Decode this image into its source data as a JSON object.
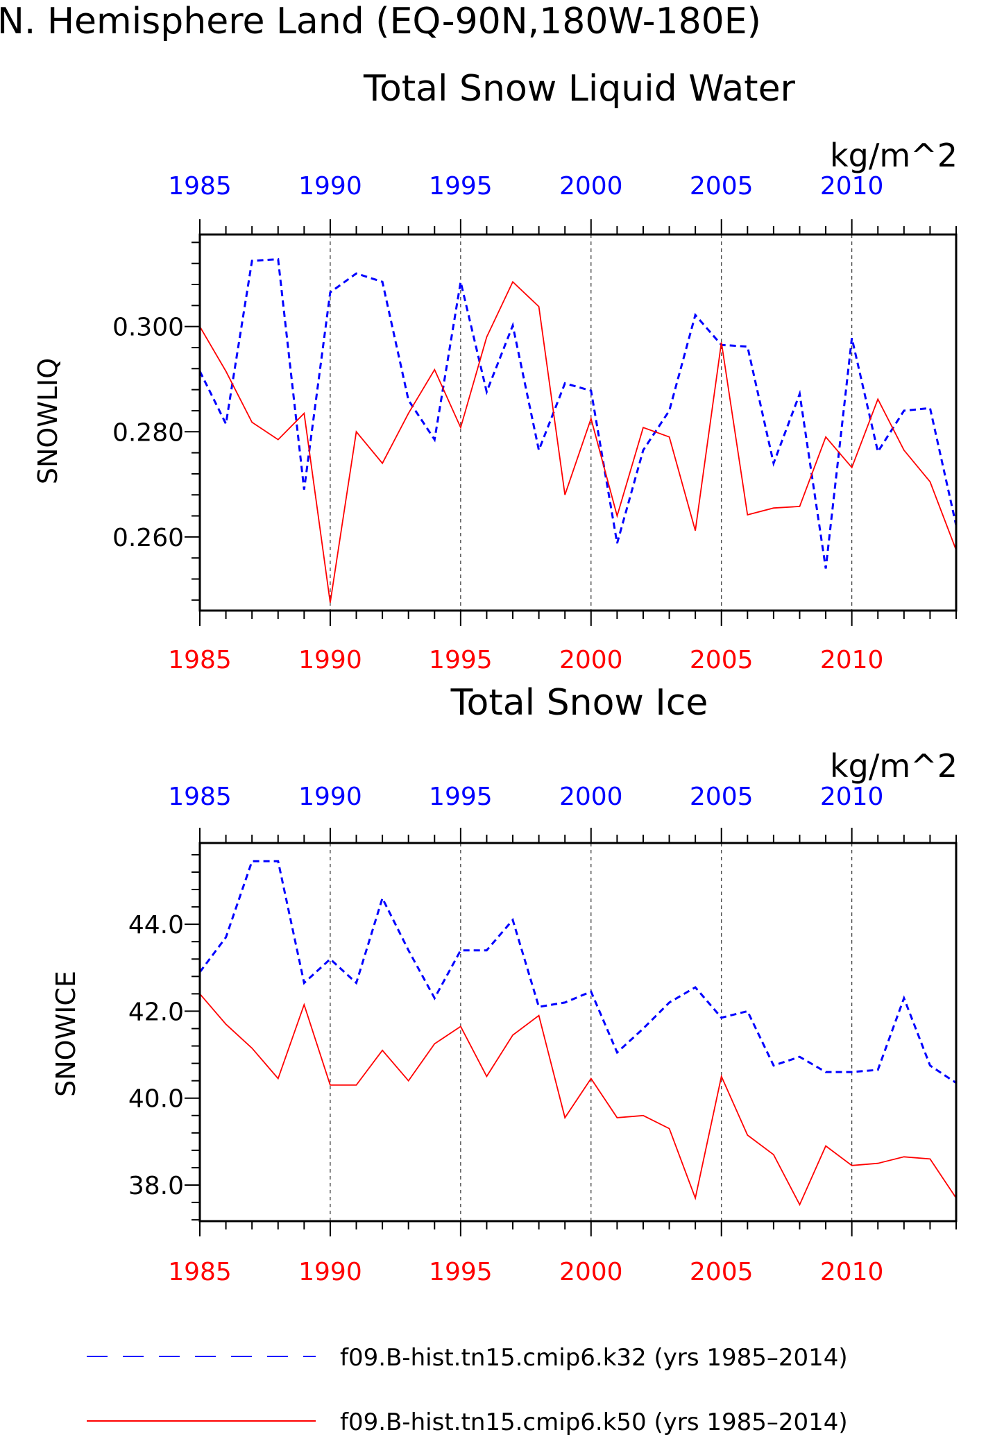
{
  "figure": {
    "title_line1": "N. Hemisphere Land (EQ-90N,180W-180E)"
  },
  "colors": {
    "blue": "#0000ff",
    "red": "#ff0000",
    "black": "#000000",
    "grid": "#333333"
  },
  "chart_data": [
    {
      "type": "line",
      "title": "Total Snow Liquid Water",
      "units": "kg/m^2",
      "ylabel": "SNOWLIQ",
      "xlim": [
        1985,
        2014
      ],
      "ylim": [
        0.246,
        0.3175
      ],
      "yticks": [
        "0.300",
        "0.280",
        "0.260"
      ],
      "ytick_values": [
        0.3,
        0.28,
        0.26
      ],
      "xticks": [
        "1985",
        "1990",
        "1995",
        "2000",
        "2005",
        "2010"
      ],
      "grid": "vertical dashed at 1990, 1995, 2000, 2005, 2010",
      "x": [
        1985,
        1986,
        1987,
        1988,
        1989,
        1990,
        1991,
        1992,
        1993,
        1994,
        1995,
        1996,
        1997,
        1998,
        1999,
        2000,
        2001,
        2002,
        2003,
        2004,
        2005,
        2006,
        2007,
        2008,
        2009,
        2010,
        2011,
        2012,
        2013,
        2014
      ],
      "series": [
        {
          "name": "f09.B-hist.tn15.cmip6.k32 (yrs 1985-2014)",
          "style": "dashed",
          "color": "#0000ff",
          "values": [
            0.2915,
            0.2815,
            0.3125,
            0.3128,
            0.269,
            0.3065,
            0.3101,
            0.3085,
            0.286,
            0.2785,
            0.3085,
            0.2876,
            0.3002,
            0.2765,
            0.2892,
            0.2878,
            0.2588,
            0.2765,
            0.284,
            0.3022,
            0.2965,
            0.2962,
            0.274,
            0.2872,
            0.254,
            0.2978,
            0.2762,
            0.284,
            0.2845,
            0.2622
          ]
        },
        {
          "name": "f09.B-hist.tn15.cmip6.k50 (yrs 1985-2014)",
          "style": "solid",
          "color": "#ff0000",
          "values": [
            0.3,
            0.2915,
            0.2818,
            0.2785,
            0.2835,
            0.2475,
            0.28,
            0.274,
            0.2835,
            0.2918,
            0.2808,
            0.298,
            0.3085,
            0.3038,
            0.268,
            0.2825,
            0.264,
            0.2808,
            0.279,
            0.2612,
            0.297,
            0.2642,
            0.2655,
            0.2658,
            0.279,
            0.2732,
            0.2862,
            0.2765,
            0.2705,
            0.2575
          ]
        }
      ]
    },
    {
      "type": "line",
      "title": "Total Snow Ice",
      "units": "kg/m^2",
      "ylabel": "SNOWICE",
      "xlim": [
        1985,
        2014
      ],
      "ylim": [
        37.17,
        45.87
      ],
      "yticks": [
        "44.0",
        "42.0",
        "40.0",
        "38.0"
      ],
      "ytick_values": [
        44,
        42,
        40,
        38
      ],
      "xticks": [
        "1985",
        "1990",
        "1995",
        "2000",
        "2005",
        "2010"
      ],
      "grid": "vertical dashed at 1990, 1995, 2000, 2005, 2010",
      "x": [
        1985,
        1986,
        1987,
        1988,
        1989,
        1990,
        1991,
        1992,
        1993,
        1994,
        1995,
        1996,
        1997,
        1998,
        1999,
        2000,
        2001,
        2002,
        2003,
        2004,
        2005,
        2006,
        2007,
        2008,
        2009,
        2010,
        2011,
        2012,
        2013,
        2014
      ],
      "series": [
        {
          "name": "f09.B-hist.tn15.cmip6.k32 (yrs 1985-2014)",
          "style": "dashed",
          "color": "#0000ff",
          "values": [
            42.9,
            43.7,
            45.45,
            45.45,
            42.65,
            43.2,
            42.65,
            44.6,
            43.4,
            42.3,
            43.4,
            43.4,
            44.1,
            42.1,
            42.2,
            42.45,
            41.05,
            41.6,
            42.2,
            42.55,
            41.85,
            42.0,
            40.75,
            40.95,
            40.6,
            40.6,
            40.65,
            42.3,
            40.75,
            40.35
          ]
        },
        {
          "name": "f09.B-hist.tn15.cmip6.k50 (yrs 1985-2014)",
          "style": "solid",
          "color": "#ff0000",
          "values": [
            42.4,
            41.7,
            41.15,
            40.45,
            42.15,
            40.3,
            40.3,
            41.1,
            40.4,
            41.25,
            41.65,
            40.5,
            41.45,
            41.9,
            39.55,
            40.45,
            39.55,
            39.6,
            39.3,
            37.7,
            40.5,
            39.15,
            38.7,
            37.55,
            38.9,
            38.45,
            38.5,
            38.65,
            38.6,
            37.7
          ]
        }
      ]
    }
  ],
  "legend": {
    "items": [
      {
        "label": "f09.B-hist.tn15.cmip6.k32 (yrs 1985–2014)",
        "style": "dashed",
        "color": "#0000ff"
      },
      {
        "label": "f09.B-hist.tn15.cmip6.k50 (yrs 1985–2014)",
        "style": "solid",
        "color": "#ff0000"
      }
    ]
  }
}
